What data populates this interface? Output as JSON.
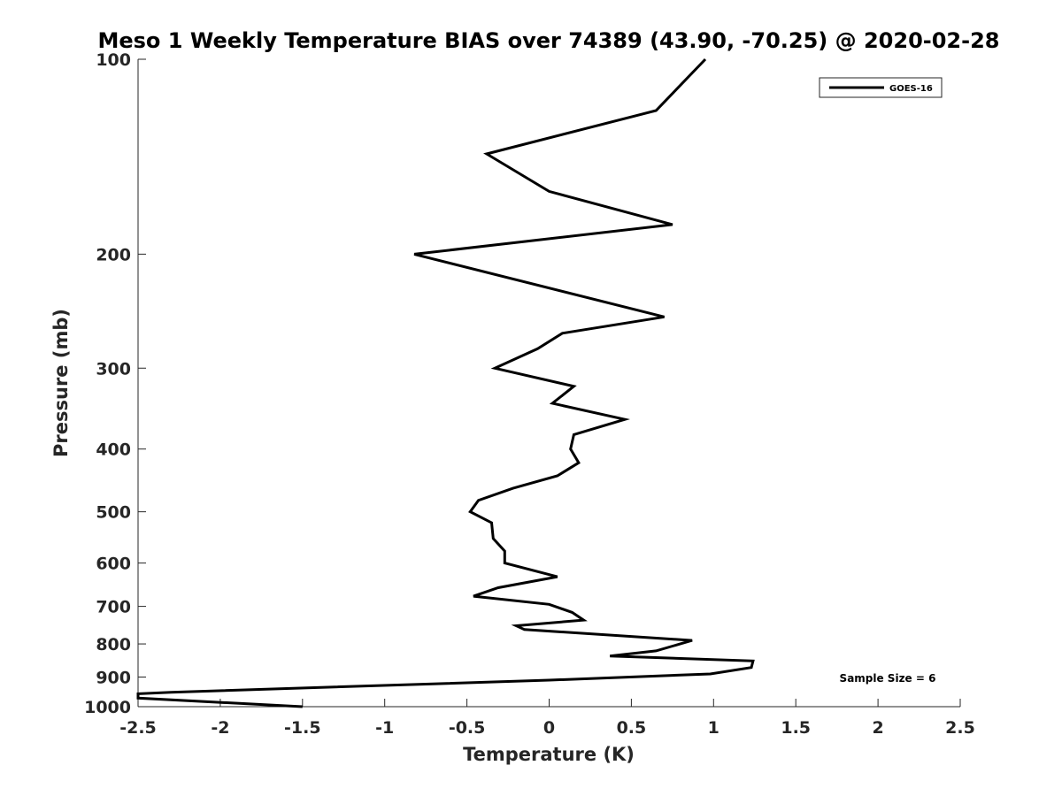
{
  "chart_data": {
    "type": "line",
    "title": "Meso 1 Weekly Temperature BIAS over 74389 (43.90, -70.25) @ 2020-02-28",
    "xlabel": "Temperature (K)",
    "ylabel": "Pressure (mb)",
    "xlim": [
      -2.5,
      2.5
    ],
    "ylim": [
      100,
      1000
    ],
    "y_scale": "log",
    "y_reversed": true,
    "x_ticks": [
      "-2.5",
      "-2",
      "-1.5",
      "-1",
      "-0.5",
      "0",
      "0.5",
      "1",
      "1.5",
      "2",
      "2.5"
    ],
    "y_ticks": [
      "100",
      "200",
      "300",
      "400",
      "500",
      "600",
      "700",
      "800",
      "900",
      "1000"
    ],
    "grid": false,
    "legend_position": "top-right",
    "annotation": "Sample Size = 6",
    "series": [
      {
        "name": "GOES-16",
        "color": "#000000",
        "points": [
          [
            0.95,
            100
          ],
          [
            0.65,
            120
          ],
          [
            -0.38,
            140
          ],
          [
            0.0,
            160
          ],
          [
            0.75,
            180
          ],
          [
            -0.82,
            200
          ],
          [
            0.7,
            250
          ],
          [
            0.08,
            265
          ],
          [
            -0.07,
            280
          ],
          [
            -0.33,
            300
          ],
          [
            0.15,
            320
          ],
          [
            0.02,
            340
          ],
          [
            0.46,
            360
          ],
          [
            0.15,
            380
          ],
          [
            0.13,
            400
          ],
          [
            0.18,
            420
          ],
          [
            0.05,
            440
          ],
          [
            -0.22,
            460
          ],
          [
            -0.43,
            480
          ],
          [
            -0.48,
            500
          ],
          [
            -0.35,
            520
          ],
          [
            -0.34,
            550
          ],
          [
            -0.27,
            575
          ],
          [
            -0.27,
            600
          ],
          [
            0.05,
            630
          ],
          [
            -0.31,
            655
          ],
          [
            -0.46,
            675
          ],
          [
            0.0,
            695
          ],
          [
            0.14,
            715
          ],
          [
            0.21,
            735
          ],
          [
            -0.2,
            750
          ],
          [
            -0.15,
            760
          ],
          [
            0.87,
            790
          ],
          [
            0.65,
            820
          ],
          [
            0.37,
            835
          ],
          [
            1.24,
            850
          ],
          [
            1.23,
            870
          ],
          [
            0.98,
            890
          ],
          [
            0.0,
            910
          ],
          [
            -2.3,
            950
          ],
          [
            -2.5,
            955
          ],
          [
            -2.5,
            970
          ],
          [
            -1.5,
            1000
          ]
        ]
      }
    ]
  }
}
